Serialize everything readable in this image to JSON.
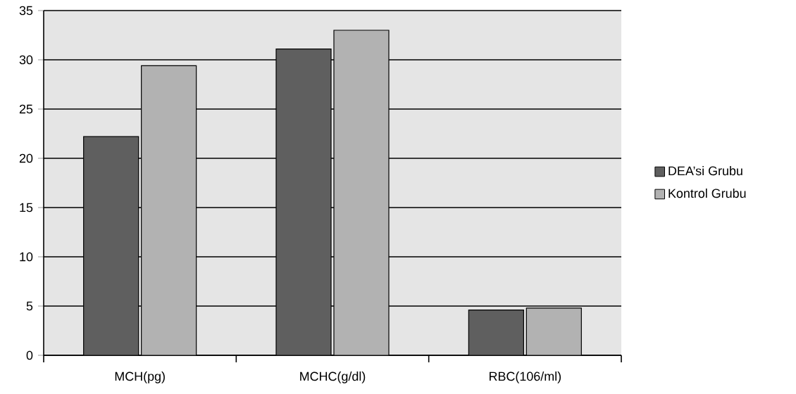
{
  "chart_data": {
    "type": "bar",
    "categories": [
      "MCH(pg)",
      "MCHC(g/dl)",
      "RBC(106/ml)"
    ],
    "series": [
      {
        "name": "DEA’si Grubu",
        "color": "#5f5f5f",
        "values": [
          22.2,
          31.1,
          4.6
        ]
      },
      {
        "name": "Kontrol Grubu",
        "color": "#b2b2b2",
        "values": [
          29.4,
          33.0,
          4.8
        ]
      }
    ],
    "ylim": [
      0,
      35
    ],
    "yticks": [
      0,
      5,
      10,
      15,
      20,
      25,
      30,
      35
    ],
    "grid": "y",
    "legend": "right"
  }
}
